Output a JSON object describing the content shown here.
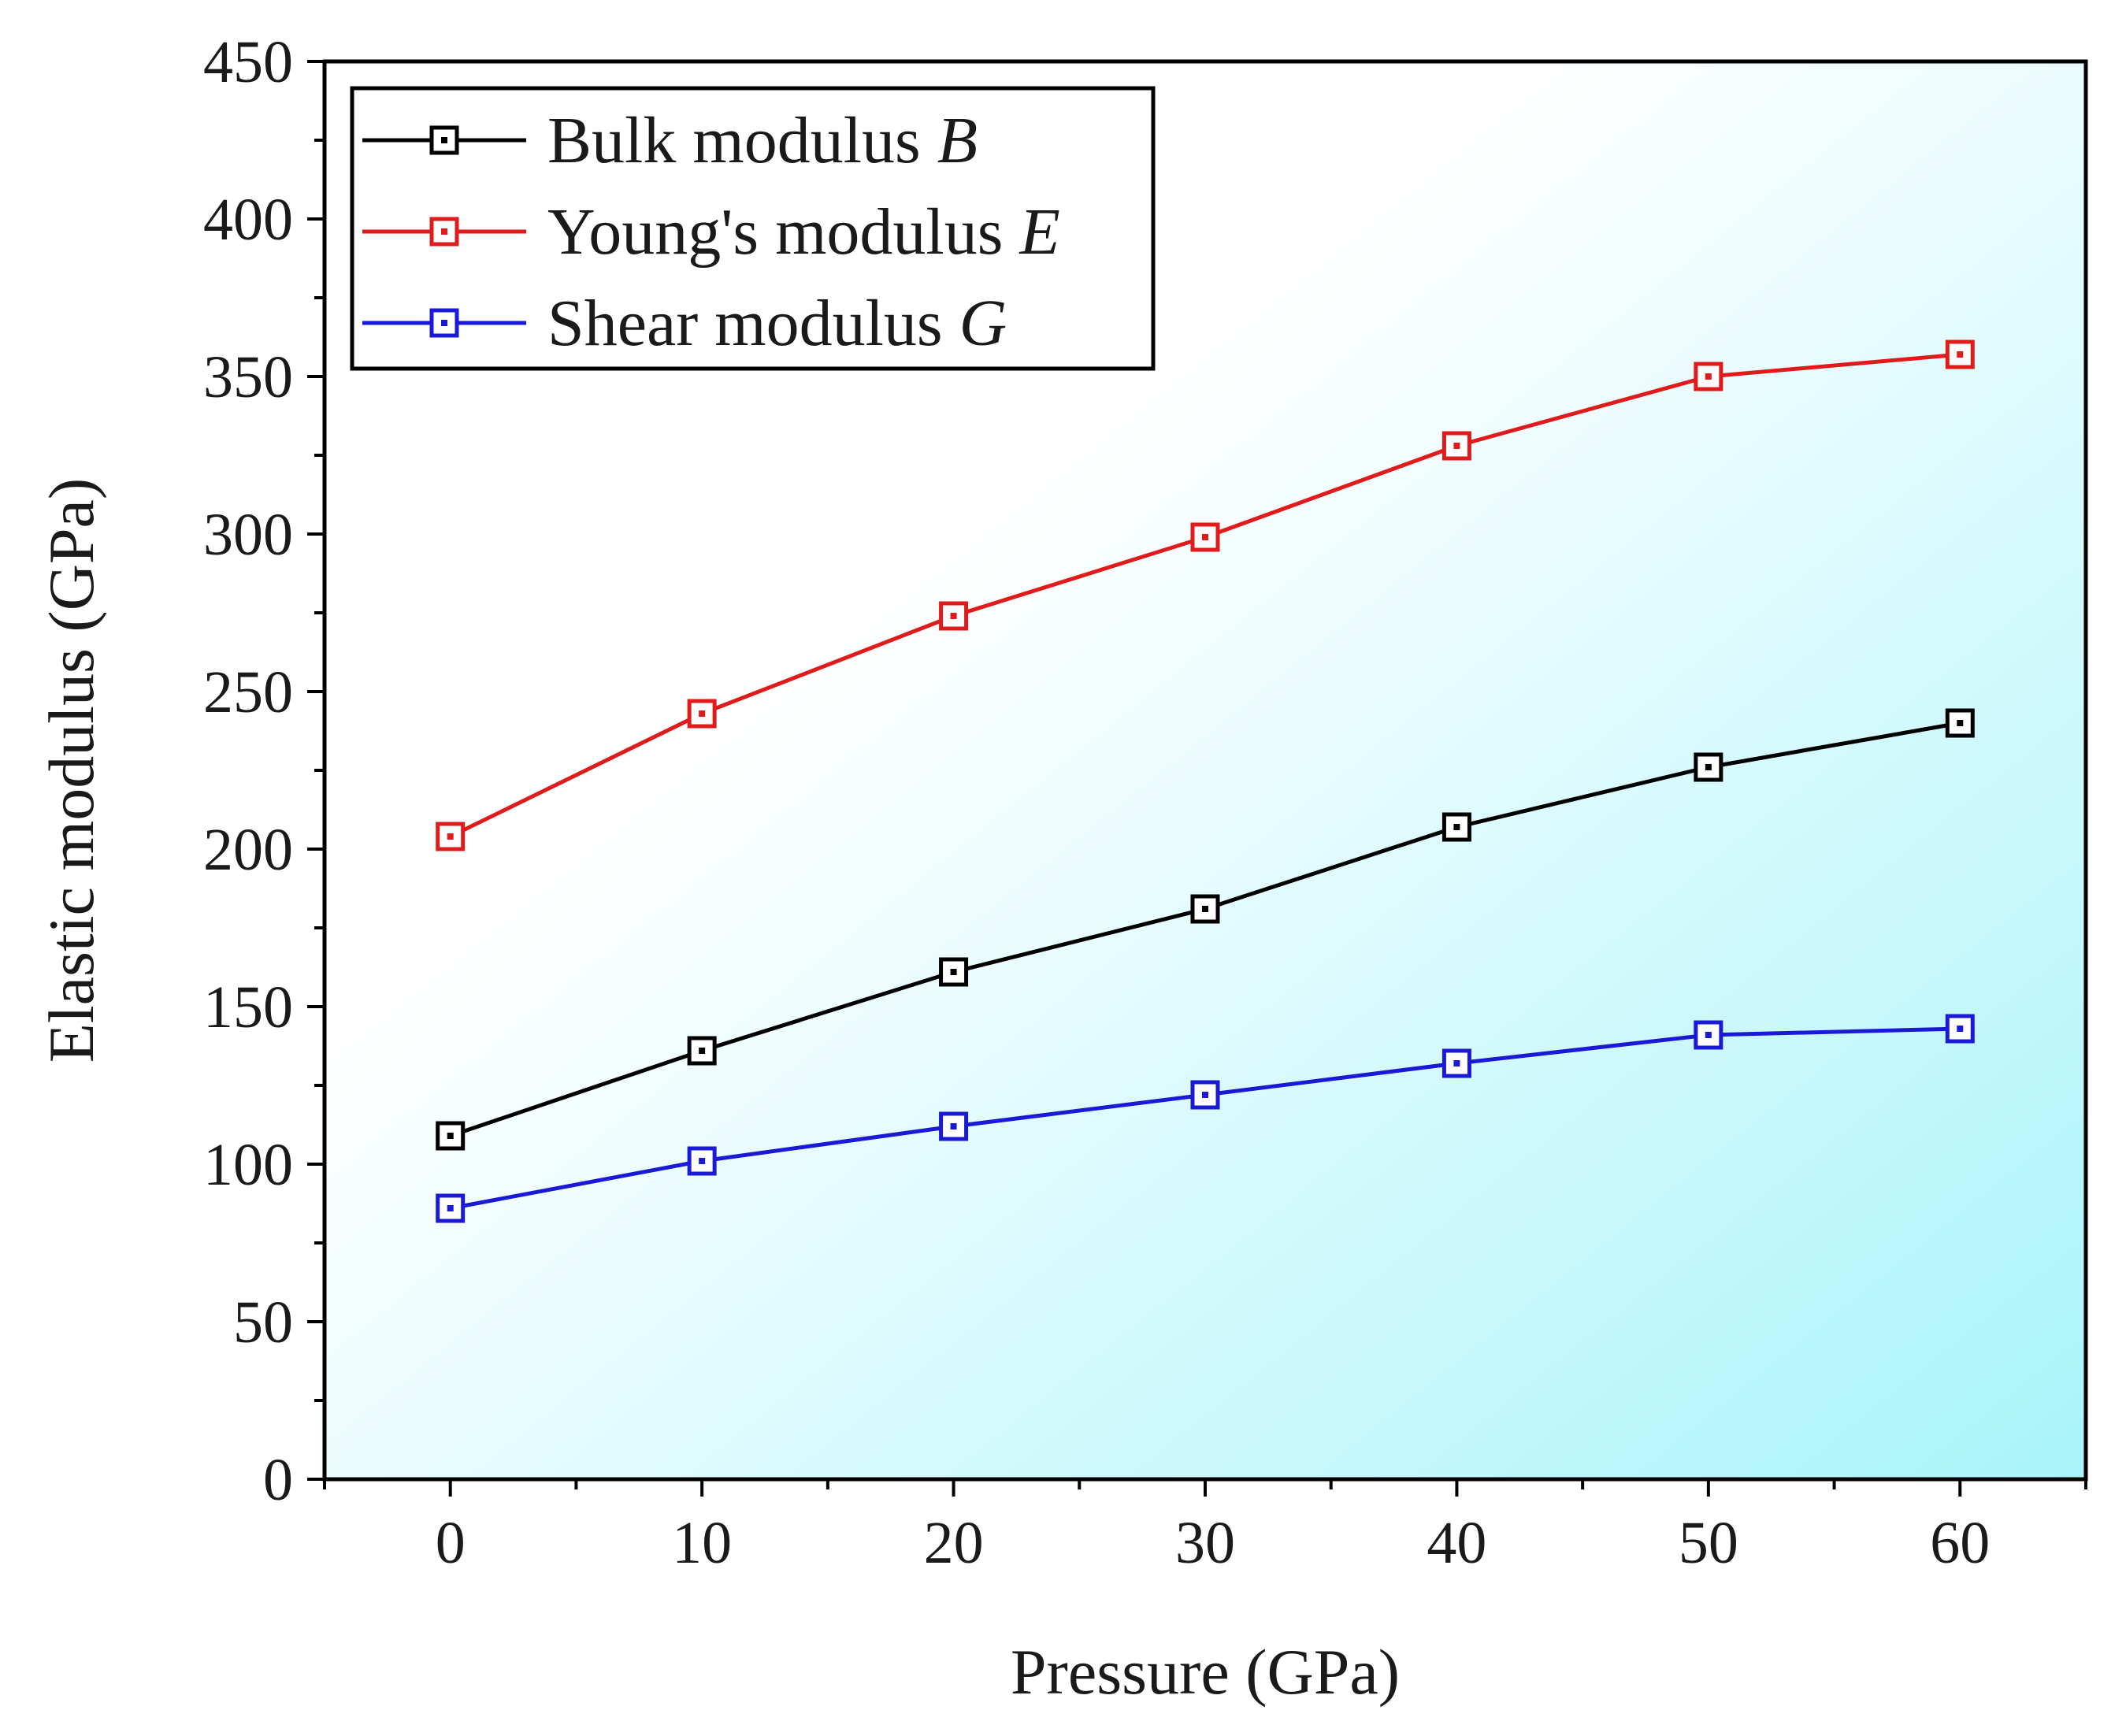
{
  "chart_data": {
    "type": "line",
    "x": [
      0,
      10,
      20,
      30,
      40,
      50,
      60
    ],
    "series": [
      {
        "name": "Bulk modulus",
        "symbol": "B",
        "color": "#000000",
        "values": [
          109,
          136,
          161,
          181,
          207,
          226,
          240
        ]
      },
      {
        "name": "Young's modulus",
        "symbol": "E",
        "color": "#e01b1b",
        "values": [
          204,
          243,
          274,
          299,
          328,
          350,
          357
        ]
      },
      {
        "name": "Shear modulus",
        "symbol": "G",
        "color": "#1a1ad6",
        "values": [
          86,
          101,
          112,
          122,
          132,
          141,
          143
        ]
      }
    ],
    "xlabel": "Pressure (GPa)",
    "ylabel": "Elastic modulus (GPa)",
    "xlim": [
      -5,
      65
    ],
    "ylim": [
      0,
      450
    ],
    "xticks": [
      "0",
      "10",
      "20",
      "30",
      "40",
      "50",
      "60"
    ],
    "yticks": [
      "0",
      "50",
      "100",
      "150",
      "200",
      "250",
      "300",
      "350",
      "400",
      "450"
    ],
    "legend_position": "top-left",
    "background_gradient": [
      "#ffffff",
      "#a8f4fa"
    ]
  }
}
